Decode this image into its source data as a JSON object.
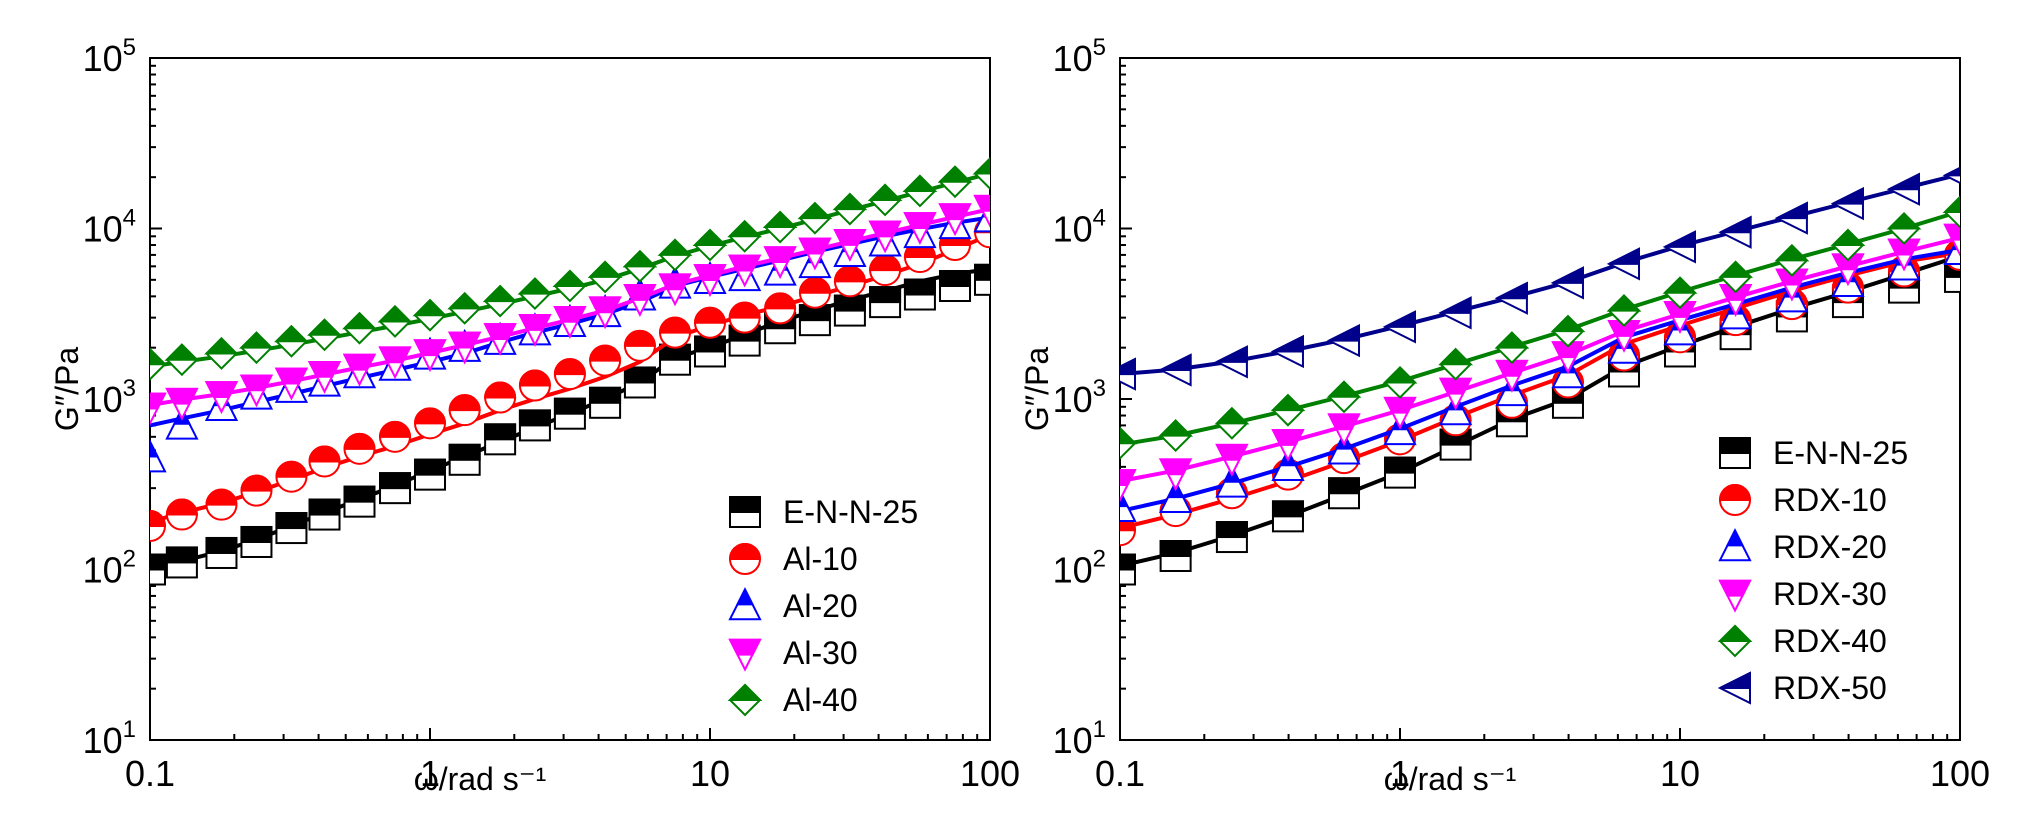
{
  "chart_data": [
    {
      "type": "scatter",
      "title": "",
      "xlabel": "ω/rad s⁻¹",
      "ylabel": "G″/Pa",
      "xscale": "log",
      "yscale": "log",
      "xlim": [
        0.1,
        100
      ],
      "ylim": [
        10,
        100000
      ],
      "xticks": [
        {
          "v": 0.1,
          "label": "0.1"
        },
        {
          "v": 1,
          "label": "1"
        },
        {
          "v": 10,
          "label": "10"
        },
        {
          "v": 100,
          "label": "100"
        }
      ],
      "yticks": [
        {
          "v": 10,
          "base": "10",
          "exp": "1"
        },
        {
          "v": 100,
          "base": "10",
          "exp": "2"
        },
        {
          "v": 1000,
          "base": "10",
          "exp": "3"
        },
        {
          "v": 10000,
          "base": "10",
          "exp": "4"
        },
        {
          "v": 100000,
          "base": "10",
          "exp": "5"
        }
      ],
      "grid": false,
      "legend_position": "bottom-right",
      "x": [
        0.1,
        0.13,
        0.18,
        0.24,
        0.32,
        0.42,
        0.56,
        0.75,
        1.0,
        1.33,
        1.78,
        2.37,
        3.16,
        4.22,
        5.62,
        7.5,
        10,
        13.3,
        17.8,
        23.7,
        31.6,
        42.2,
        56.2,
        75,
        100
      ],
      "series": [
        {
          "name": "E-N-N-25",
          "marker": "square",
          "color": "#000000",
          "values": [
            100,
            110,
            125,
            145,
            175,
            210,
            250,
            300,
            360,
            440,
            580,
            700,
            820,
            950,
            1250,
            1700,
            1900,
            2200,
            2600,
            2900,
            3300,
            3700,
            4100,
            4600,
            5000
          ],
          "fit": [
            100,
            112,
            128,
            150,
            180,
            215,
            258,
            310,
            380,
            460,
            560,
            680,
            820,
            1000,
            1250,
            1750,
            2000,
            2400,
            2850,
            3300,
            3800,
            4300,
            4900,
            5400,
            5800
          ]
        },
        {
          "name": "Al-10",
          "marker": "circle",
          "color": "#ff0000",
          "values": [
            180,
            210,
            240,
            290,
            350,
            430,
            510,
            600,
            720,
            860,
            1020,
            1200,
            1400,
            1680,
            2050,
            2450,
            2800,
            3000,
            3400,
            4200,
            4900,
            5700,
            6800,
            8000,
            9500
          ],
          "fit": [
            190,
            215,
            245,
            285,
            335,
            395,
            460,
            530,
            620,
            720,
            860,
            1000,
            1150,
            1350,
            1650,
            2300,
            2700,
            3100,
            3500,
            4000,
            4600,
            5300,
            6200,
            7500,
            9200
          ]
        },
        {
          "name": "Al-20",
          "marker": "triangle-up",
          "color": "#0000ff",
          "values": [
            450,
            700,
            900,
            1050,
            1150,
            1250,
            1400,
            1550,
            1800,
            2000,
            2200,
            2500,
            2800,
            3200,
            4000,
            4700,
            5000,
            5200,
            5600,
            6200,
            7200,
            8300,
            9300,
            10500,
            11500
          ],
          "fit": [
            700,
            770,
            860,
            960,
            1070,
            1190,
            1330,
            1480,
            1650,
            1850,
            2150,
            2450,
            2750,
            3150,
            3700,
            4600,
            5200,
            5800,
            6500,
            7300,
            8100,
            9000,
            9900,
            10800,
            11600
          ]
        },
        {
          "name": "Al-30",
          "marker": "triangle-down",
          "color": "#ff00ff",
          "values": [
            900,
            960,
            1050,
            1150,
            1260,
            1380,
            1520,
            1680,
            1850,
            2050,
            2300,
            2600,
            2900,
            3300,
            3900,
            4500,
            5100,
            5800,
            6500,
            7300,
            8200,
            9200,
            10300,
            11600,
            13000
          ],
          "fit": [
            920,
            990,
            1070,
            1160,
            1270,
            1390,
            1530,
            1680,
            1860,
            2070,
            2320,
            2600,
            2920,
            3300,
            3900,
            4700,
            5300,
            6000,
            6700,
            7500,
            8400,
            9400,
            10500,
            11700,
            13000
          ]
        },
        {
          "name": "Al-40",
          "marker": "diamond",
          "color": "#008000",
          "values": [
            1600,
            1700,
            1850,
            2000,
            2180,
            2380,
            2600,
            2850,
            3100,
            3400,
            3750,
            4150,
            4600,
            5200,
            6000,
            7000,
            8000,
            9000,
            10200,
            11500,
            13000,
            14700,
            16600,
            18800,
            21000
          ],
          "fit": [
            1550,
            1650,
            1780,
            1920,
            2080,
            2260,
            2460,
            2690,
            2950,
            3250,
            3600,
            4000,
            4450,
            5000,
            5800,
            6900,
            7900,
            8900,
            10000,
            11300,
            12800,
            14500,
            16400,
            18600,
            21000
          ]
        }
      ]
    },
    {
      "type": "scatter",
      "title": "",
      "xlabel": "ω/rad s⁻¹",
      "ylabel": "G″/Pa",
      "xscale": "log",
      "yscale": "log",
      "xlim": [
        0.1,
        100
      ],
      "ylim": [
        10,
        100000
      ],
      "xticks": [
        {
          "v": 0.1,
          "label": "0.1"
        },
        {
          "v": 1,
          "label": "1"
        },
        {
          "v": 10,
          "label": "10"
        },
        {
          "v": 100,
          "label": "100"
        }
      ],
      "yticks": [
        {
          "v": 10,
          "base": "10",
          "exp": "1"
        },
        {
          "v": 100,
          "base": "10",
          "exp": "2"
        },
        {
          "v": 1000,
          "base": "10",
          "exp": "3"
        },
        {
          "v": 10000,
          "base": "10",
          "exp": "4"
        },
        {
          "v": 100000,
          "base": "10",
          "exp": "5"
        }
      ],
      "grid": false,
      "legend_position": "bottom-right",
      "x": [
        0.1,
        0.158,
        0.251,
        0.398,
        0.631,
        1.0,
        1.58,
        2.51,
        3.98,
        6.31,
        10,
        15.8,
        25.1,
        39.8,
        63.1,
        100
      ],
      "series": [
        {
          "name": "E-N-N-25",
          "marker": "square",
          "color": "#000000",
          "values": [
            100,
            120,
            155,
            205,
            280,
            370,
            540,
            740,
            950,
            1450,
            1900,
            2400,
            3050,
            3700,
            4500,
            5200
          ],
          "fit": [
            105,
            125,
            158,
            205,
            275,
            370,
            530,
            760,
            1000,
            1550,
            2050,
            2650,
            3400,
            4250,
            5400,
            6900
          ]
        },
        {
          "name": "RDX-10",
          "marker": "circle",
          "color": "#ff0000",
          "values": [
            170,
            220,
            280,
            360,
            450,
            580,
            750,
            950,
            1250,
            1800,
            2300,
            2900,
            3600,
            4500,
            5600,
            7000
          ],
          "fit": [
            175,
            210,
            260,
            330,
            430,
            570,
            780,
            1050,
            1380,
            2100,
            2700,
            3400,
            4300,
            5300,
            6400,
            7200
          ]
        },
        {
          "name": "RDX-20",
          "marker": "triangle-up",
          "color": "#0000ff",
          "values": [
            230,
            260,
            320,
            400,
            500,
            650,
            850,
            1100,
            1400,
            1950,
            2500,
            3100,
            3900,
            4800,
            6000,
            7400
          ],
          "fit": [
            220,
            260,
            320,
            400,
            510,
            670,
            900,
            1200,
            1550,
            2300,
            2900,
            3600,
            4500,
            5500,
            6600,
            7500
          ]
        },
        {
          "name": "RDX-30",
          "marker": "triangle-down",
          "color": "#ff00ff",
          "values": [
            320,
            370,
            450,
            550,
            680,
            850,
            1100,
            1400,
            1800,
            2400,
            3100,
            3900,
            4800,
            5900,
            7200,
            8800
          ],
          "fit": [
            330,
            380,
            460,
            560,
            690,
            860,
            1100,
            1420,
            1820,
            2500,
            3150,
            3950,
            4900,
            6000,
            7300,
            8800
          ]
        },
        {
          "name": "RDX-40",
          "marker": "diamond",
          "color": "#008000",
          "values": [
            550,
            610,
            720,
            860,
            1030,
            1250,
            1600,
            2000,
            2500,
            3300,
            4200,
            5200,
            6500,
            8000,
            10000,
            12500
          ],
          "fit": [
            540,
            610,
            720,
            860,
            1040,
            1270,
            1600,
            2020,
            2550,
            3350,
            4250,
            5300,
            6600,
            8100,
            10000,
            12600
          ]
        },
        {
          "name": "RDX-50",
          "marker": "triangle-left",
          "color": "#00008b",
          "values": [
            1400,
            1480,
            1650,
            1900,
            2200,
            2650,
            3200,
            3900,
            4800,
            6200,
            7800,
            9500,
            11500,
            14000,
            17000,
            20500
          ],
          "fit": [
            1400,
            1490,
            1660,
            1910,
            2230,
            2680,
            3250,
            3950,
            4850,
            6300,
            7900,
            9600,
            11700,
            14200,
            17200,
            20800
          ]
        }
      ]
    }
  ]
}
